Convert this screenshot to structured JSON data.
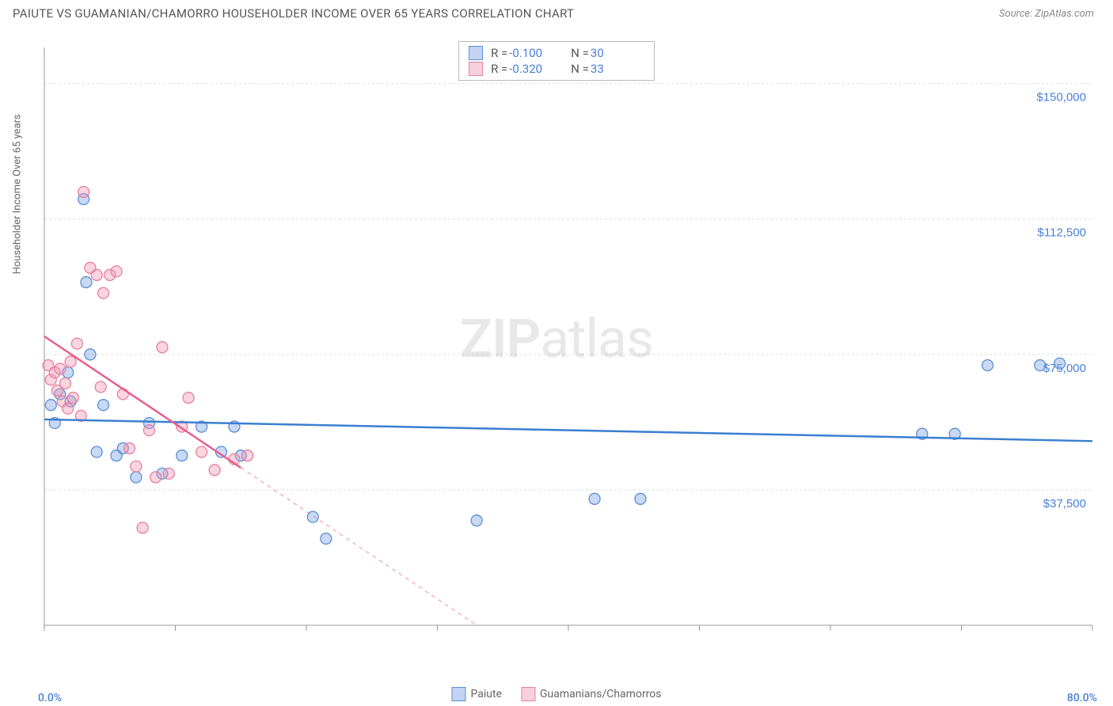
{
  "title": "PAIUTE VS GUAMANIAN/CHAMORRO HOUSEHOLDER INCOME OVER 65 YEARS CORRELATION CHART",
  "source": "Source: ZipAtlas.com",
  "y_axis_label": "Householder Income Over 65 years",
  "watermark": {
    "part1": "ZIP",
    "part2": "atlas"
  },
  "x_axis": {
    "min_label": "0.0%",
    "max_label": "80.0%",
    "min": 0,
    "max": 80,
    "color": "#4a7fd8"
  },
  "y_axis": {
    "min": 0,
    "max": 160000,
    "ticks": [
      37500,
      75000,
      112500,
      150000
    ],
    "tick_labels": [
      "$37,500",
      "$75,000",
      "$112,500",
      "$150,000"
    ],
    "tick_color": "#4a7fd8"
  },
  "x_ticks": [
    0,
    10,
    20,
    30,
    40,
    50,
    60,
    70,
    80
  ],
  "grid_color": "#dddddd",
  "axis_line_color": "#999999",
  "plot_bg": "#ffffff",
  "marker_radius": 7,
  "marker_stroke_width": 1.3,
  "trend_line_width": 2.5,
  "series": [
    {
      "name": "Paiute",
      "fill": "rgba(120,160,225,0.4)",
      "stroke": "#5a8fd8",
      "trend_color": "#3a7fd0",
      "trend": {
        "x1": 0,
        "y1": 57000,
        "x2": 80,
        "y2": 51000
      },
      "trend_dash_after_x": null,
      "R": "-0.100",
      "N": "30",
      "points": [
        [
          0.5,
          61000
        ],
        [
          0.8,
          56000
        ],
        [
          1.2,
          64000
        ],
        [
          1.8,
          70000
        ],
        [
          2.0,
          62000
        ],
        [
          3.0,
          118000
        ],
        [
          3.2,
          95000
        ],
        [
          3.5,
          75000
        ],
        [
          4.0,
          48000
        ],
        [
          4.5,
          61000
        ],
        [
          5.5,
          47000
        ],
        [
          6.0,
          49000
        ],
        [
          7.0,
          41000
        ],
        [
          8.0,
          56000
        ],
        [
          9.0,
          42000
        ],
        [
          10.5,
          47000
        ],
        [
          12.0,
          55000
        ],
        [
          13.5,
          48000
        ],
        [
          14.5,
          55000
        ],
        [
          15.0,
          47000
        ],
        [
          20.5,
          30000
        ],
        [
          21.5,
          24000
        ],
        [
          33.0,
          29000
        ],
        [
          42.0,
          35000
        ],
        [
          45.5,
          35000
        ],
        [
          67.0,
          53000
        ],
        [
          69.5,
          53000
        ],
        [
          72.0,
          72000
        ],
        [
          76.0,
          72000
        ],
        [
          77.5,
          72500
        ]
      ]
    },
    {
      "name": "Guamanians/Chamorros",
      "fill": "rgba(240,150,175,0.4)",
      "stroke": "#e87fa0",
      "trend_color": "#e85f8a",
      "trend": {
        "x1": 0,
        "y1": 80000,
        "x2": 33,
        "y2": 0
      },
      "trend_dash_after_x": 15,
      "R": "-0.320",
      "N": "33",
      "points": [
        [
          0.3,
          72000
        ],
        [
          0.5,
          68000
        ],
        [
          0.8,
          70000
        ],
        [
          1.0,
          65000
        ],
        [
          1.2,
          71000
        ],
        [
          1.4,
          62000
        ],
        [
          1.6,
          67000
        ],
        [
          1.8,
          60000
        ],
        [
          2.0,
          73000
        ],
        [
          2.2,
          63000
        ],
        [
          2.5,
          78000
        ],
        [
          2.8,
          58000
        ],
        [
          3.0,
          120000
        ],
        [
          3.5,
          99000
        ],
        [
          4.0,
          97000
        ],
        [
          4.3,
          66000
        ],
        [
          4.5,
          92000
        ],
        [
          5.0,
          97000
        ],
        [
          5.5,
          98000
        ],
        [
          6.0,
          64000
        ],
        [
          6.5,
          49000
        ],
        [
          7.0,
          44000
        ],
        [
          7.5,
          27000
        ],
        [
          8.0,
          54000
        ],
        [
          8.5,
          41000
        ],
        [
          9.0,
          77000
        ],
        [
          9.5,
          42000
        ],
        [
          10.5,
          55000
        ],
        [
          11.0,
          63000
        ],
        [
          12.0,
          48000
        ],
        [
          13.0,
          43000
        ],
        [
          14.5,
          46000
        ],
        [
          15.5,
          47000
        ]
      ]
    }
  ],
  "legend": {
    "items": [
      {
        "label": "Paiute",
        "fill": "rgba(120,160,225,0.45)",
        "stroke": "#5a8fd8"
      },
      {
        "label": "Guamanians/Chamorros",
        "fill": "rgba(240,150,175,0.45)",
        "stroke": "#e87fa0"
      }
    ]
  },
  "stat_box": {
    "rows": [
      {
        "fill": "rgba(120,160,225,0.45)",
        "stroke": "#5a8fd8",
        "R": "-0.100",
        "N": "30"
      },
      {
        "fill": "rgba(240,150,175,0.45)",
        "stroke": "#e87fa0",
        "R": "-0.320",
        "N": "33"
      }
    ]
  }
}
